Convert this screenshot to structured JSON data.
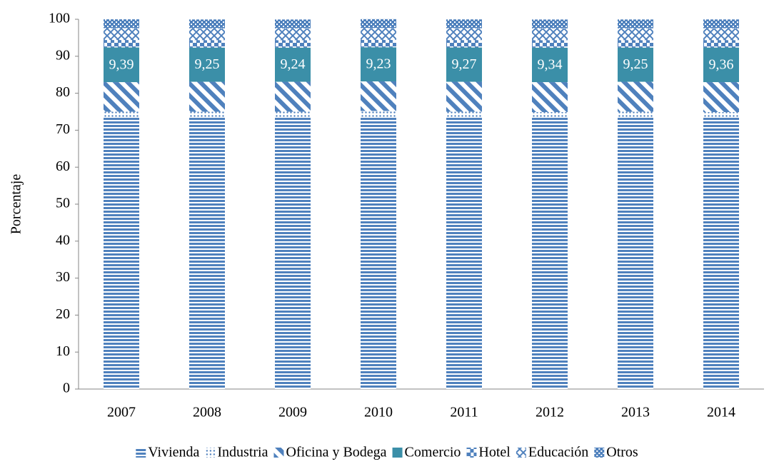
{
  "chart_data": {
    "type": "stacked_bar",
    "y_label": "Porcentaje",
    "categories": [
      "2007",
      "2008",
      "2009",
      "2010",
      "2011",
      "2012",
      "2013",
      "2014"
    ],
    "ylim": [
      0,
      100
    ],
    "yticks": [
      0,
      10,
      20,
      30,
      40,
      50,
      60,
      70,
      80,
      90,
      100
    ],
    "legend": "bottom",
    "series": [
      {
        "name": "Vivienda",
        "color": "#4f81bd",
        "pattern": "hlines",
        "values": [
          73.5,
          73.5,
          73.5,
          73.6,
          73.5,
          73.4,
          73.5,
          73.4
        ]
      },
      {
        "name": "Industria",
        "color": "#4f81bd",
        "pattern": "dots",
        "values": [
          1.5,
          1.5,
          1.5,
          1.6,
          1.5,
          1.5,
          1.5,
          1.5
        ]
      },
      {
        "name": "Oficina y Bodega",
        "color": "#4f81bd",
        "pattern": "diag",
        "values": [
          8.0,
          8.1,
          8.1,
          8.0,
          8.1,
          8.1,
          8.1,
          8.1
        ]
      },
      {
        "name": "Comercio",
        "color": "#3b8fa8",
        "pattern": "solid",
        "values": [
          9.39,
          9.25,
          9.24,
          9.23,
          9.27,
          9.34,
          9.25,
          9.36
        ],
        "value_labels": [
          "9,39",
          "9,25",
          "9,24",
          "9,23",
          "9,27",
          "9,34",
          "9,25",
          "9,36"
        ]
      },
      {
        "name": "Hotel",
        "color": "#4f81bd",
        "pattern": "blocks",
        "values": [
          2.0,
          2.0,
          2.0,
          2.0,
          2.0,
          2.0,
          2.0,
          2.0
        ]
      },
      {
        "name": "Educación",
        "color": "#4f81bd",
        "pattern": "cross",
        "values": [
          3.2,
          3.2,
          3.2,
          3.2,
          3.2,
          3.2,
          3.2,
          3.2
        ]
      },
      {
        "name": "Otros",
        "color": "#4f81bd",
        "pattern": "check",
        "values": [
          2.4,
          2.4,
          2.4,
          2.4,
          2.4,
          2.4,
          2.4,
          2.4
        ]
      }
    ]
  }
}
